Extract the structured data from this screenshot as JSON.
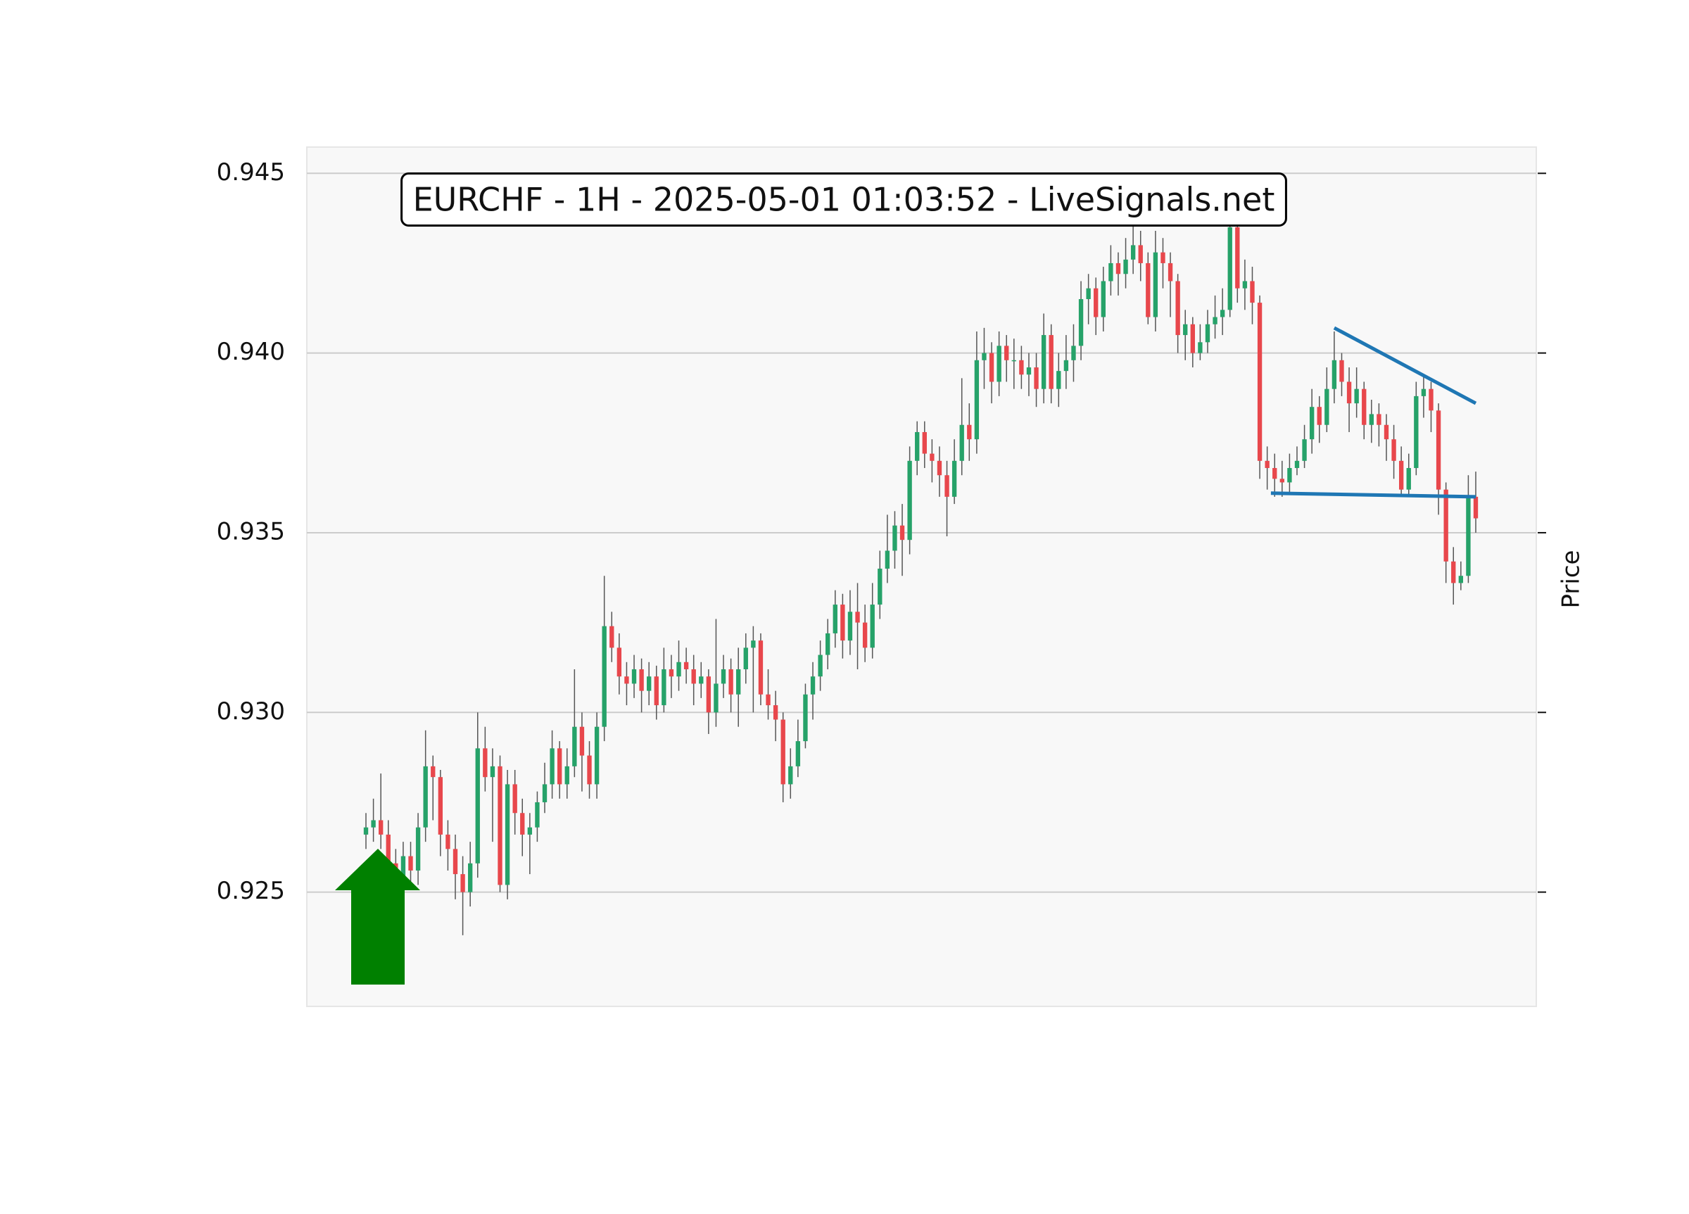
{
  "chart_data": {
    "type": "candlestick",
    "title": "EURCHF - 1H - 2025-05-01 01:03:52 - LiveSignals.net",
    "ylabel": "Price",
    "up_color": "#26a269",
    "down_color": "#e8474c",
    "wick_color": "#555555",
    "ylim": [
      0.92182,
      0.94573
    ],
    "yticks": [
      0.925,
      {
        "value": 0.93,
        "label": "0.930"
      },
      0.935,
      {
        "value": 0.94,
        "label": "0.940"
      },
      0.945
    ],
    "grid": true,
    "open": [
      0.9266,
      0.9268,
      0.927,
      0.9266,
      0.9258,
      0.9252,
      0.926,
      0.9256,
      0.9268,
      0.9285,
      0.9282,
      0.9266,
      0.9262,
      0.9255,
      0.925,
      0.9258,
      0.929,
      0.9282,
      0.9285,
      0.9252,
      0.928,
      0.9272,
      0.9266,
      0.9268,
      0.9275,
      0.928,
      0.929,
      0.928,
      0.9285,
      0.9296,
      0.9288,
      0.928,
      0.9296,
      0.9324,
      0.9318,
      0.931,
      0.9308,
      0.9312,
      0.9306,
      0.931,
      0.9302,
      0.9312,
      0.931,
      0.9314,
      0.9312,
      0.9308,
      0.931,
      0.93,
      0.9308,
      0.9312,
      0.9305,
      0.9312,
      0.9318,
      0.932,
      0.9305,
      0.9302,
      0.9298,
      0.928,
      0.9285,
      0.9292,
      0.9305,
      0.931,
      0.9316,
      0.9322,
      0.933,
      0.932,
      0.9328,
      0.9325,
      0.9318,
      0.933,
      0.934,
      0.9345,
      0.9352,
      0.9348,
      0.937,
      0.9378,
      0.9372,
      0.937,
      0.9366,
      0.936,
      0.937,
      0.938,
      0.9376,
      0.9398,
      0.94,
      0.9392,
      0.9402,
      0.9398,
      0.9398,
      0.9394,
      0.9396,
      0.939,
      0.9405,
      0.939,
      0.9395,
      0.9398,
      0.9402,
      0.9415,
      0.9418,
      0.941,
      0.942,
      0.9425,
      0.9422,
      0.9426,
      0.943,
      0.9425,
      0.941,
      0.9428,
      0.9425,
      0.942,
      0.9405,
      0.9408,
      0.94,
      0.9403,
      0.9408,
      0.941,
      0.9412,
      0.9435,
      0.9418,
      0.942,
      0.9414,
      0.937,
      0.9368,
      0.9365,
      0.9364,
      0.9368,
      0.937,
      0.9376,
      0.9385,
      0.938,
      0.939,
      0.9398,
      0.9392,
      0.9386,
      0.939,
      0.938,
      0.9383,
      0.938,
      0.9376,
      0.937,
      0.9362,
      0.9368,
      0.9388,
      0.939,
      0.9384,
      0.9362,
      0.9342,
      0.9336,
      0.9338,
      0.936
    ],
    "high": [
      0.9272,
      0.9276,
      0.9283,
      0.927,
      0.9262,
      0.9264,
      0.9264,
      0.9272,
      0.9295,
      0.9288,
      0.9284,
      0.927,
      0.9266,
      0.926,
      0.9264,
      0.93,
      0.9296,
      0.929,
      0.9288,
      0.9284,
      0.9284,
      0.9276,
      0.9272,
      0.9278,
      0.9286,
      0.9295,
      0.9292,
      0.929,
      0.9312,
      0.93,
      0.9292,
      0.93,
      0.9338,
      0.9328,
      0.9322,
      0.9314,
      0.9316,
      0.9315,
      0.9314,
      0.9313,
      0.9318,
      0.9316,
      0.932,
      0.9318,
      0.9316,
      0.9314,
      0.9312,
      0.9326,
      0.9316,
      0.9315,
      0.9318,
      0.9322,
      0.9324,
      0.9322,
      0.9312,
      0.9306,
      0.93,
      0.929,
      0.9298,
      0.9308,
      0.9314,
      0.932,
      0.9326,
      0.9334,
      0.9333,
      0.9334,
      0.9336,
      0.933,
      0.9336,
      0.9345,
      0.9355,
      0.9356,
      0.9358,
      0.9374,
      0.9381,
      0.9381,
      0.9376,
      0.9374,
      0.937,
      0.9376,
      0.9393,
      0.9386,
      0.9406,
      0.9407,
      0.9403,
      0.9406,
      0.9405,
      0.9404,
      0.9402,
      0.94,
      0.94,
      0.9411,
      0.9408,
      0.94,
      0.9405,
      0.9408,
      0.942,
      0.9422,
      0.9421,
      0.9424,
      0.943,
      0.9428,
      0.9432,
      0.9436,
      0.9434,
      0.9428,
      0.9434,
      0.9432,
      0.9428,
      0.9422,
      0.9412,
      0.941,
      0.9408,
      0.9412,
      0.9416,
      0.9418,
      0.944,
      0.9436,
      0.9426,
      0.9424,
      0.9416,
      0.9374,
      0.9372,
      0.937,
      0.9372,
      0.9374,
      0.938,
      0.939,
      0.9388,
      0.9396,
      0.9406,
      0.94,
      0.9396,
      0.9396,
      0.9392,
      0.9387,
      0.9386,
      0.9383,
      0.938,
      0.9374,
      0.9372,
      0.9392,
      0.9394,
      0.9392,
      0.9386,
      0.9364,
      0.9346,
      0.9342,
      0.9366,
      0.9367
    ],
    "low": [
      0.9262,
      0.9264,
      0.9262,
      0.9254,
      0.9248,
      0.9238,
      0.9252,
      0.9252,
      0.9264,
      0.927,
      0.926,
      0.9256,
      0.9248,
      0.9238,
      0.9246,
      0.9254,
      0.9278,
      0.9264,
      0.925,
      0.9248,
      0.9266,
      0.926,
      0.9255,
      0.9264,
      0.9272,
      0.9276,
      0.9276,
      0.9276,
      0.9282,
      0.9278,
      0.9276,
      0.9276,
      0.9292,
      0.9314,
      0.9305,
      0.9302,
      0.9304,
      0.93,
      0.9302,
      0.9298,
      0.93,
      0.9304,
      0.9306,
      0.9308,
      0.9302,
      0.9304,
      0.9294,
      0.9296,
      0.9304,
      0.93,
      0.9296,
      0.9308,
      0.93,
      0.9302,
      0.9298,
      0.9292,
      0.9275,
      0.9276,
      0.9282,
      0.929,
      0.9298,
      0.9306,
      0.9312,
      0.9318,
      0.9315,
      0.9316,
      0.9312,
      0.9314,
      0.9315,
      0.9326,
      0.9336,
      0.934,
      0.9338,
      0.9344,
      0.9366,
      0.9368,
      0.9364,
      0.936,
      0.9349,
      0.9358,
      0.9366,
      0.937,
      0.9372,
      0.939,
      0.9386,
      0.9388,
      0.9392,
      0.939,
      0.939,
      0.9388,
      0.9385,
      0.9386,
      0.9386,
      0.9385,
      0.939,
      0.9392,
      0.9398,
      0.9408,
      0.9405,
      0.9406,
      0.9416,
      0.9416,
      0.9418,
      0.9422,
      0.942,
      0.9408,
      0.9406,
      0.9418,
      0.941,
      0.94,
      0.9398,
      0.9396,
      0.9398,
      0.94,
      0.9404,
      0.9405,
      0.941,
      0.9414,
      0.9412,
      0.9408,
      0.9365,
      0.9362,
      0.936,
      0.936,
      0.9361,
      0.9366,
      0.9368,
      0.9372,
      0.9375,
      0.9378,
      0.9386,
      0.9388,
      0.9378,
      0.9382,
      0.9376,
      0.9375,
      0.9374,
      0.937,
      0.9365,
      0.936,
      0.936,
      0.9366,
      0.9382,
      0.9378,
      0.9355,
      0.9336,
      0.933,
      0.9334,
      0.9336,
      0.935
    ],
    "close": [
      0.9268,
      0.927,
      0.9266,
      0.9258,
      0.9252,
      0.926,
      0.9256,
      0.9268,
      0.9285,
      0.9282,
      0.9266,
      0.9262,
      0.9255,
      0.925,
      0.9258,
      0.929,
      0.9282,
      0.9285,
      0.9252,
      0.928,
      0.9272,
      0.9266,
      0.9268,
      0.9275,
      0.928,
      0.929,
      0.928,
      0.9285,
      0.9296,
      0.9288,
      0.928,
      0.9296,
      0.9324,
      0.9318,
      0.931,
      0.9308,
      0.9312,
      0.9306,
      0.931,
      0.9302,
      0.9312,
      0.931,
      0.9314,
      0.9312,
      0.9308,
      0.931,
      0.93,
      0.9308,
      0.9312,
      0.9305,
      0.9312,
      0.9318,
      0.932,
      0.9305,
      0.9302,
      0.9298,
      0.928,
      0.9285,
      0.9292,
      0.9305,
      0.931,
      0.9316,
      0.9322,
      0.933,
      0.932,
      0.9328,
      0.9325,
      0.9318,
      0.933,
      0.934,
      0.9345,
      0.9352,
      0.9348,
      0.937,
      0.9378,
      0.9372,
      0.937,
      0.9366,
      0.936,
      0.937,
      0.938,
      0.9376,
      0.9398,
      0.94,
      0.9392,
      0.9402,
      0.9398,
      0.9398,
      0.9394,
      0.9396,
      0.939,
      0.9405,
      0.939,
      0.9395,
      0.9398,
      0.9402,
      0.9415,
      0.9418,
      0.941,
      0.942,
      0.9425,
      0.9422,
      0.9426,
      0.943,
      0.9425,
      0.941,
      0.9428,
      0.9425,
      0.942,
      0.9405,
      0.9408,
      0.94,
      0.9403,
      0.9408,
      0.941,
      0.9412,
      0.9435,
      0.9418,
      0.942,
      0.9414,
      0.937,
      0.9368,
      0.9365,
      0.9364,
      0.9368,
      0.937,
      0.9376,
      0.9385,
      0.938,
      0.939,
      0.9398,
      0.9392,
      0.9386,
      0.939,
      0.938,
      0.9383,
      0.938,
      0.9376,
      0.937,
      0.9362,
      0.9368,
      0.9388,
      0.939,
      0.9384,
      0.9362,
      0.9342,
      0.9336,
      0.9338,
      0.936,
      0.9354
    ],
    "trendlines": [
      {
        "color": "#1f77b4",
        "x": [
          130,
          149
        ],
        "y": [
          0.9407,
          0.9386
        ]
      },
      {
        "color": "#1f77b4",
        "x": [
          121.5,
          149
        ],
        "y": [
          0.9361,
          0.936
        ]
      }
    ]
  }
}
